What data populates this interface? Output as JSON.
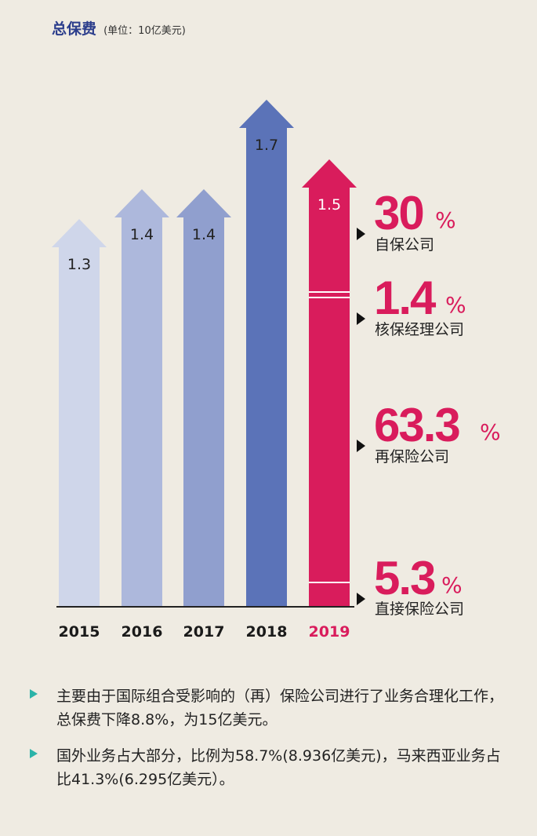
{
  "header": {
    "title": "总保费",
    "unit": "(单位：10亿美元)"
  },
  "chart_data": {
    "type": "bar",
    "title": "总保费",
    "ylabel": "(单位：10亿美元)",
    "categories": [
      "2015",
      "2016",
      "2017",
      "2018",
      "2019"
    ],
    "values": [
      1.3,
      1.4,
      1.4,
      1.7,
      1.5
    ],
    "value_labels": [
      "1.3",
      "1.4",
      "1.4",
      "1.7",
      "1.5"
    ],
    "highlight_index": 4,
    "bar_colors": [
      "#cfd6ea",
      "#adb8dc",
      "#909fce",
      "#5b73b8",
      "#d91c5c"
    ],
    "breakdown_2019": [
      {
        "label": "自保公司",
        "value": 30,
        "value_text": "30"
      },
      {
        "label": "核保经理公司",
        "value": 1.4,
        "value_text": "1.4"
      },
      {
        "label": "再保险公司",
        "value": 63.3,
        "value_text": "63.3"
      },
      {
        "label": "直接保险公司",
        "value": 5.3,
        "value_text": "5.3"
      }
    ],
    "percent_sign": "%"
  },
  "notes": [
    "主要由于国际组合受影响的（再）保险公司进行了业务合理化工作，总保费下降8.8%，为15亿美元。",
    "国外业务占大部分，比例为58.7%(8.936亿美元)，马来西亚业务占比41.3%(6.295亿美元）。"
  ],
  "colors": {
    "accent": "#d91c5c",
    "title": "#2c3e8c",
    "bullet": "#2bb3a8",
    "background": "#efebe2"
  }
}
